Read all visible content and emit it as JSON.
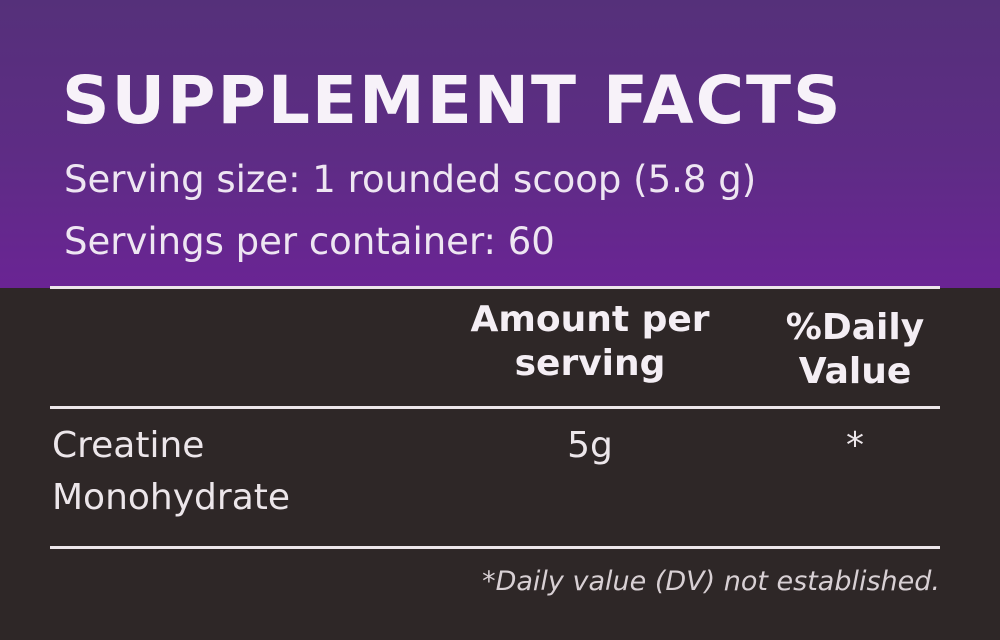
{
  "title": "SUPPLEMENT FACTS",
  "serving_size": "Serving size:  1 rounded scoop (5.8 g)",
  "servings_per_container": "Servings per container: 60",
  "table": {
    "headers": {
      "amount": "Amount per serving",
      "daily_value": "%Daily Value"
    },
    "rows": [
      {
        "name": "Creatine Monohydrate",
        "amount": "5g",
        "daily_value": "*"
      }
    ]
  },
  "footnote": "*Daily value (DV) not established.",
  "colors": {
    "header_purple": "#5e2c85",
    "body_dark": "#2e2727",
    "text": "#f4eef6"
  }
}
